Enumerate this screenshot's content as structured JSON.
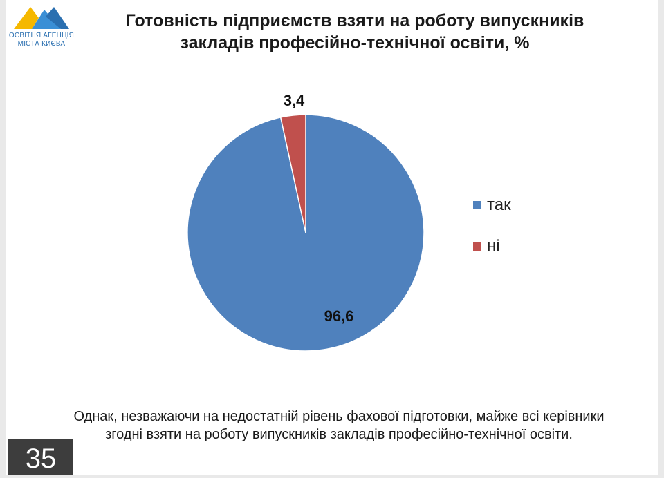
{
  "logo": {
    "line1": "ОСВІТНЯ АГЕНЦІЯ",
    "line2": "МІСТА КИЄВА",
    "colors": {
      "yellow": "#f5b800",
      "blue": "#3a8fd6"
    }
  },
  "title": {
    "line1": "Готовність підприємств взяти на роботу випускників",
    "line2": "закладів професійно-технічної освіти, %"
  },
  "chart_data": {
    "type": "pie",
    "title": "Готовність підприємств взяти на роботу випускників закладів професійно-технічної освіти, %",
    "slices": [
      {
        "name": "так",
        "value": 96.6,
        "label": "96,6",
        "color": "#4f81bd"
      },
      {
        "name": "ні",
        "value": 3.4,
        "label": "3,4",
        "color": "#c0504d"
      }
    ],
    "start_angle_deg": 0,
    "direction": "clockwise",
    "legend_position": "right"
  },
  "caption": {
    "line1": "Однак, незважаючи на недостатній рівень фахової підготовки, майже всі керівники",
    "line2": "згодні взяти на роботу випускників закладів професійно-технічної освіти."
  },
  "page_number": "35"
}
